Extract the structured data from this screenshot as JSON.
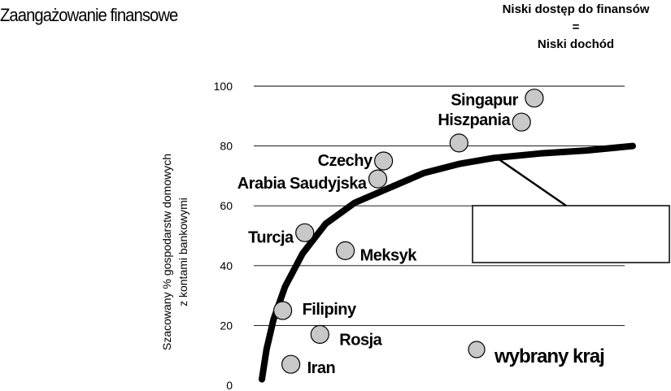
{
  "chart_data": {
    "type": "scatter",
    "title": "Zaangażowanie finansowe",
    "annotation": {
      "line1": "Niski dostęp do finansów",
      "line2": "=",
      "line3": "Niski dochód"
    },
    "ylabel_line1": "Szacowany % gospodarstw domowych",
    "ylabel_line2": "z kontami bankowymi",
    "xlabel": "",
    "ylim": [
      0,
      100
    ],
    "yticks": [
      0,
      20,
      40,
      60,
      80,
      100
    ],
    "grid": true,
    "series": [
      {
        "points": [
          {
            "label": "Iran",
            "x": 2.5,
            "y": 7
          },
          {
            "label": "Rosja",
            "x": 5.0,
            "y": 17
          },
          {
            "label": "Filipiny",
            "x": 1.8,
            "y": 25
          },
          {
            "label": "Turcja",
            "x": 3.7,
            "y": 51
          },
          {
            "label": "Meksyk",
            "x": 7.2,
            "y": 45
          },
          {
            "label": "Arabia Saudyjska",
            "x": 10.0,
            "y": 69
          },
          {
            "label": "Czechy",
            "x": 10.5,
            "y": 75
          },
          {
            "label": "Hiszpania",
            "x": 17.0,
            "y": 81
          },
          {
            "label": "Singapur",
            "x": 23.5,
            "y": 96
          },
          {
            "label": "Hiszpania_dup",
            "x": 22.4,
            "y": 88
          }
        ]
      }
    ],
    "trend": {
      "x": [
        0,
        0.4,
        1.0,
        2.0,
        3.5,
        5.5,
        8.0,
        11.0,
        14.0,
        17.0,
        20.0,
        24.0,
        28.0,
        32.0
      ],
      "y": [
        2,
        12,
        22,
        33,
        44,
        54,
        61,
        66,
        71,
        74,
        76,
        77.5,
        78.5,
        80
      ]
    },
    "legend_item": "wybrany kraj",
    "legend_value": {
      "x": 17.6,
      "y": 11
    }
  }
}
